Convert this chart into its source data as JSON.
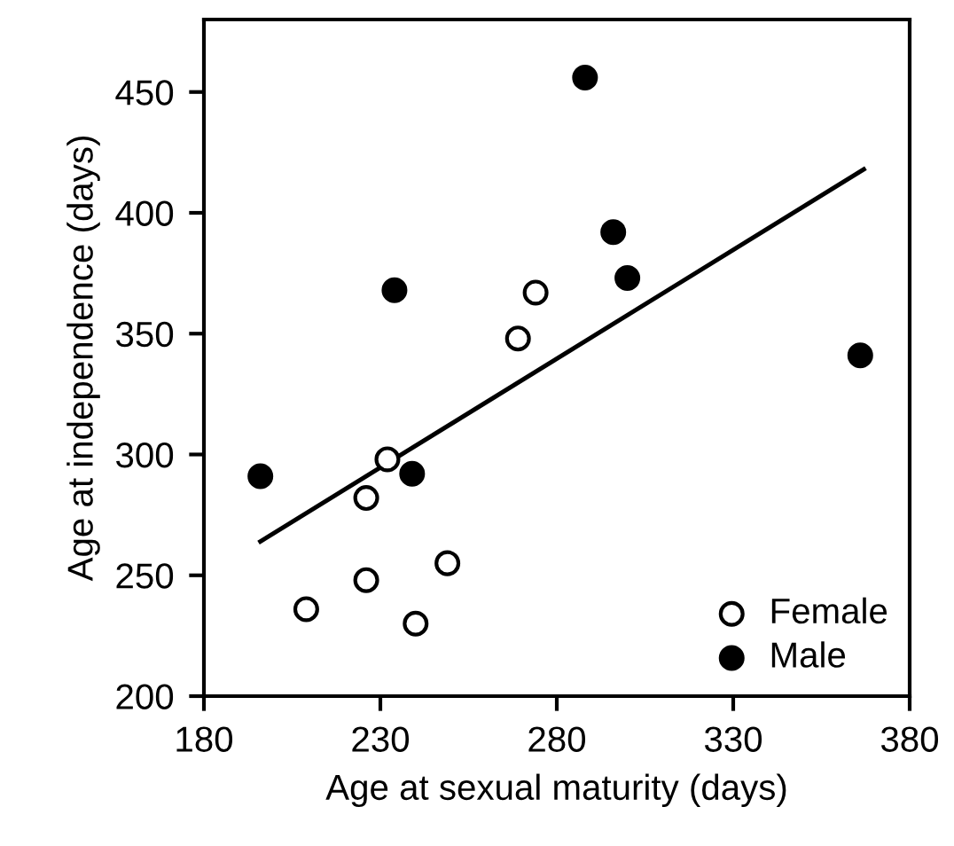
{
  "chart_data": {
    "type": "scatter",
    "xlabel": "Age at sexual maturity (days)",
    "ylabel": "Age at independence (days)",
    "xlim": [
      180,
      380
    ],
    "xticks": [
      180,
      230,
      280,
      330,
      380
    ],
    "ylim": [
      200,
      480
    ],
    "yticks": [
      200,
      250,
      300,
      350,
      400,
      450
    ],
    "grid": false,
    "legend": "bottom right",
    "series": [
      {
        "name": "Female",
        "marker": "circle",
        "color": "#ffffff",
        "x": [
          274,
          269,
          232,
          226,
          249,
          226,
          209,
          240
        ],
        "values": [
          367,
          348,
          298,
          282,
          255,
          248,
          236,
          230
        ]
      },
      {
        "name": "Male",
        "marker": "circle",
        "color": "#000000",
        "x": [
          288,
          296,
          300,
          234,
          366,
          196,
          239
        ],
        "values": [
          456,
          392,
          373,
          368,
          341,
          291,
          292
        ]
      },
      {
        "type": "line",
        "marker": "none",
        "line_style": "solid",
        "color": "#000000",
        "x": [
          196,
          367
        ],
        "values": [
          264,
          418
        ]
      }
    ]
  }
}
